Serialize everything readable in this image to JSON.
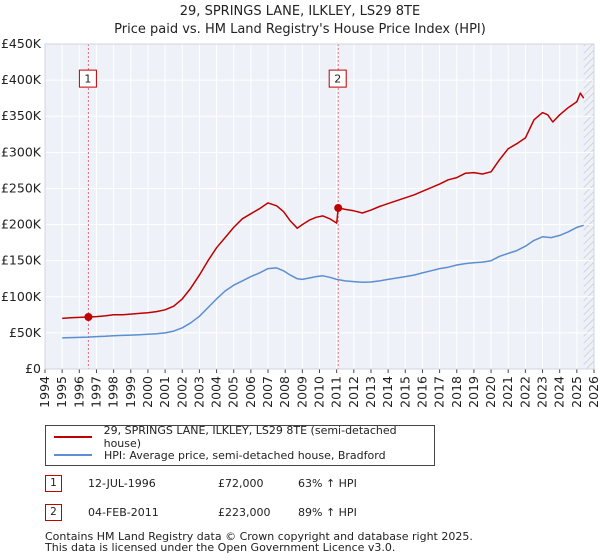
{
  "chart_data": {
    "type": "line",
    "title": "29, SPRINGS LANE, ILKLEY, LS29 8TE",
    "subtitle": "Price paid vs. HM Land Registry's House Price Index (HPI)",
    "xlabel": "",
    "ylabel": "",
    "xlim": [
      1994,
      2026
    ],
    "ylim": [
      0,
      450000
    ],
    "x_ticks": [
      "1994",
      "1995",
      "1996",
      "1997",
      "1998",
      "1999",
      "2000",
      "2001",
      "2002",
      "2003",
      "2004",
      "2005",
      "2006",
      "2007",
      "2008",
      "2009",
      "2010",
      "2011",
      "2012",
      "2013",
      "2014",
      "2015",
      "2016",
      "2017",
      "2018",
      "2019",
      "2020",
      "2021",
      "2022",
      "2023",
      "2024",
      "2025",
      "2026"
    ],
    "y_ticks": [
      {
        "value": 0,
        "label": "£0"
      },
      {
        "value": 50000,
        "label": "£50K"
      },
      {
        "value": 100000,
        "label": "£100K"
      },
      {
        "value": 150000,
        "label": "£150K"
      },
      {
        "value": 200000,
        "label": "£200K"
      },
      {
        "value": 250000,
        "label": "£250K"
      },
      {
        "value": 300000,
        "label": "£300K"
      },
      {
        "value": 350000,
        "label": "£350K"
      },
      {
        "value": 400000,
        "label": "£400K"
      },
      {
        "value": 450000,
        "label": "£450K"
      }
    ],
    "grid": true,
    "series": [
      {
        "name": "29, SPRINGS LANE, ILKLEY, LS29 8TE (semi-detached house)",
        "color": "#c00000",
        "x": [
          1995.0,
          1995.5,
          1996.0,
          1996.53,
          1997.0,
          1997.5,
          1998.0,
          1998.5,
          1999.0,
          1999.5,
          2000.0,
          2000.5,
          2001.0,
          2001.5,
          2002.0,
          2002.5,
          2003.0,
          2003.5,
          2004.0,
          2004.5,
          2005.0,
          2005.5,
          2006.0,
          2006.5,
          2007.0,
          2007.5,
          2007.9,
          2008.3,
          2008.7,
          2009.0,
          2009.4,
          2009.8,
          2010.2,
          2010.6,
          2011.0,
          2011.09,
          2011.5,
          2012.0,
          2012.5,
          2013.0,
          2013.5,
          2014.0,
          2014.5,
          2015.0,
          2015.5,
          2016.0,
          2016.5,
          2017.0,
          2017.5,
          2018.0,
          2018.5,
          2019.0,
          2019.5,
          2020.0,
          2020.5,
          2021.0,
          2021.5,
          2022.0,
          2022.5,
          2023.0,
          2023.3,
          2023.6,
          2024.0,
          2024.5,
          2025.0,
          2025.2,
          2025.4
        ],
        "values": [
          70000,
          71000,
          71500,
          72000,
          72500,
          73500,
          75000,
          75000,
          76000,
          77000,
          78000,
          79500,
          82000,
          87000,
          97000,
          112000,
          130000,
          150000,
          168000,
          182000,
          196000,
          208000,
          215000,
          222000,
          230000,
          226000,
          218000,
          205000,
          195000,
          200000,
          206000,
          210000,
          212000,
          208000,
          202000,
          223000,
          221000,
          219000,
          216000,
          220000,
          225000,
          229000,
          233000,
          237000,
          241000,
          246000,
          251000,
          256000,
          262000,
          265000,
          271000,
          272000,
          270000,
          273000,
          290000,
          305000,
          312000,
          320000,
          345000,
          355000,
          352000,
          342000,
          352000,
          362000,
          370000,
          382000,
          375000
        ]
      },
      {
        "name": "HPI: Average price, semi-detached house, Bradford",
        "color": "#5b8fd1",
        "x": [
          1995.0,
          1995.5,
          1996.0,
          1996.5,
          1997.0,
          1997.5,
          1998.0,
          1998.5,
          1999.0,
          1999.5,
          2000.0,
          2000.5,
          2001.0,
          2001.5,
          2002.0,
          2002.5,
          2003.0,
          2003.5,
          2004.0,
          2004.5,
          2005.0,
          2005.5,
          2006.0,
          2006.5,
          2007.0,
          2007.5,
          2007.9,
          2008.3,
          2008.7,
          2009.0,
          2009.4,
          2009.8,
          2010.2,
          2010.6,
          2011.0,
          2011.5,
          2012.0,
          2012.5,
          2013.0,
          2013.5,
          2014.0,
          2014.5,
          2015.0,
          2015.5,
          2016.0,
          2016.5,
          2017.0,
          2017.5,
          2018.0,
          2018.5,
          2019.0,
          2019.5,
          2020.0,
          2020.5,
          2021.0,
          2021.5,
          2022.0,
          2022.5,
          2023.0,
          2023.5,
          2024.0,
          2024.5,
          2025.0,
          2025.4
        ],
        "values": [
          43000,
          43500,
          43800,
          44200,
          44800,
          45300,
          46000,
          46500,
          47000,
          47500,
          48000,
          48800,
          50000,
          52500,
          57000,
          64000,
          73000,
          85000,
          97000,
          108000,
          116000,
          122000,
          128000,
          133000,
          139000,
          140000,
          136000,
          130000,
          125000,
          124000,
          126000,
          128000,
          129000,
          127000,
          124000,
          122000,
          121000,
          120000,
          120500,
          122000,
          124000,
          126000,
          128000,
          130000,
          133000,
          136000,
          139000,
          141000,
          144000,
          146000,
          147000,
          148000,
          150000,
          156000,
          160000,
          164000,
          170000,
          178000,
          183000,
          182000,
          185000,
          190000,
          196000,
          199000
        ]
      }
    ],
    "markers": [
      {
        "label": "1",
        "x": 1996.53,
        "value": 72000
      },
      {
        "label": "2",
        "x": 2011.09,
        "value": 223000
      }
    ],
    "legend_position": "bottom"
  },
  "legend": {
    "property_label": "29, SPRINGS LANE, ILKLEY, LS29 8TE (semi-detached house)",
    "hpi_label": "HPI: Average price, semi-detached house, Bradford",
    "property_color": "#c00000",
    "hpi_color": "#5b8fd1"
  },
  "transactions": [
    {
      "badge": "1",
      "date": "12-JUL-1996",
      "price": "£72,000",
      "hpi": "63% ↑ HPI"
    },
    {
      "badge": "2",
      "date": "04-FEB-2011",
      "price": "£223,000",
      "hpi": "89% ↑ HPI"
    }
  ],
  "footer": {
    "line1": "Contains HM Land Registry data © Crown copyright and database right 2025.",
    "line2": "This data is licensed under the Open Government Licence v3.0."
  }
}
